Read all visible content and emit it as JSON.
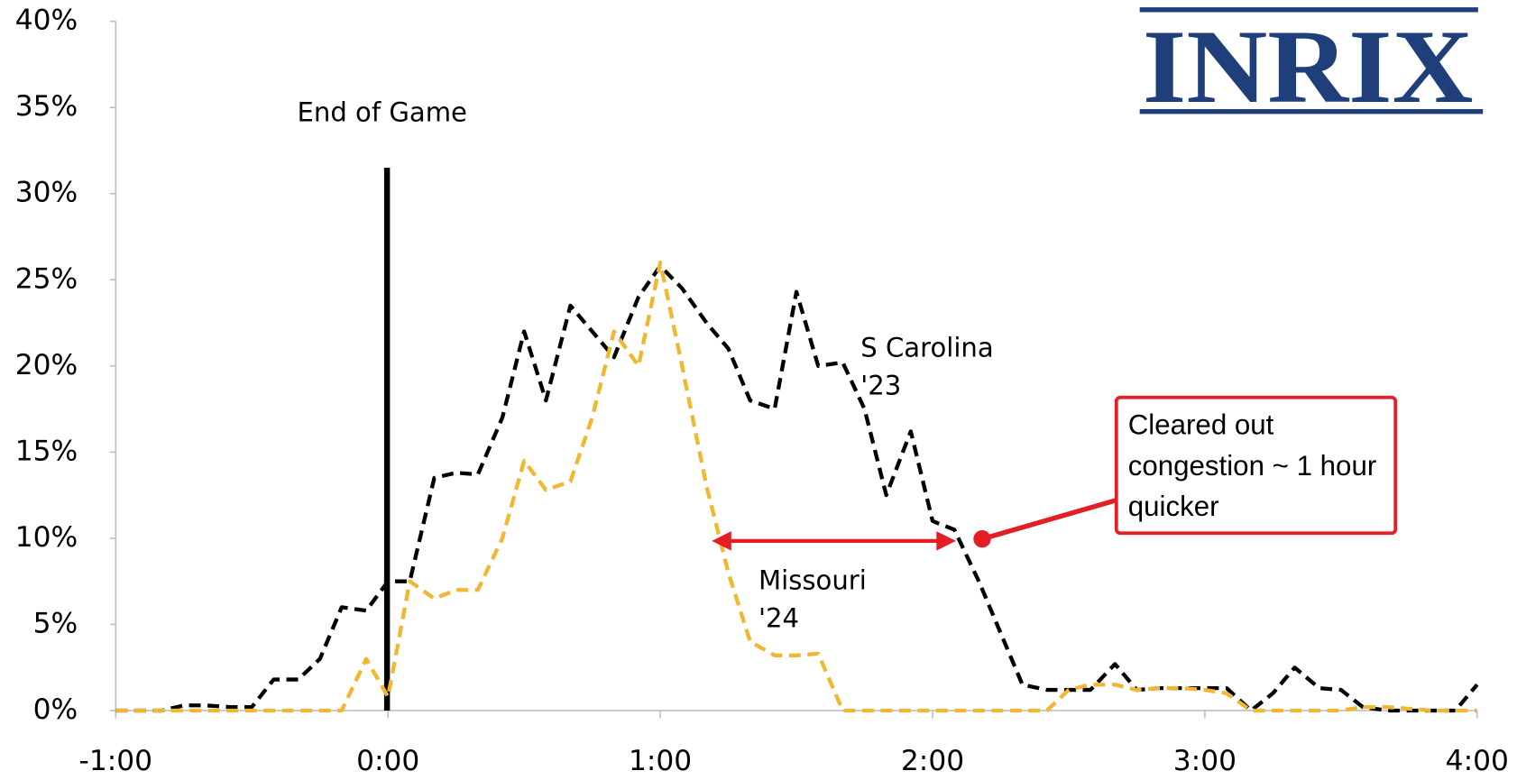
{
  "chart_data": {
    "type": "line",
    "logo": "INRIX",
    "annotations": [
      "End of Game",
      "Cleared out congestion ~ 1 hour quicker"
    ],
    "xlim": [
      -1,
      4
    ],
    "xticks": [
      {
        "value": -1,
        "label": "-1:00"
      },
      {
        "value": 0,
        "label": "0:00"
      },
      {
        "value": 1,
        "label": "1:00"
      },
      {
        "value": 2,
        "label": "2:00"
      },
      {
        "value": 3,
        "label": "3:00"
      },
      {
        "value": 4,
        "label": "4:00"
      }
    ],
    "ylim": [
      0,
      40
    ],
    "yticks": [
      {
        "value": 0,
        "label": "0%"
      },
      {
        "value": 5,
        "label": "5%"
      },
      {
        "value": 10,
        "label": "10%"
      },
      {
        "value": 15,
        "label": "15%"
      },
      {
        "value": 20,
        "label": "20%"
      },
      {
        "value": 25,
        "label": "25%"
      },
      {
        "value": 30,
        "label": "30%"
      },
      {
        "value": 35,
        "label": "35%"
      },
      {
        "value": 40,
        "label": "40%"
      }
    ],
    "x": [
      -1,
      -0.92,
      -0.83,
      -0.75,
      -0.67,
      -0.58,
      -0.5,
      -0.42,
      -0.33,
      -0.25,
      -0.17,
      -0.08,
      0,
      0.08,
      0.17,
      0.25,
      0.33,
      0.42,
      0.5,
      0.58,
      0.67,
      0.75,
      0.83,
      0.92,
      1,
      1.08,
      1.17,
      1.25,
      1.33,
      1.42,
      1.5,
      1.58,
      1.67,
      1.75,
      1.83,
      1.92,
      2,
      2.08,
      2.17,
      2.25,
      2.33,
      2.42,
      2.5,
      2.58,
      2.67,
      2.75,
      2.83,
      2.92,
      3,
      3.08,
      3.17,
      3.25,
      3.33,
      3.42,
      3.5,
      3.58,
      3.67,
      3.75,
      3.83,
      3.92,
      4
    ],
    "series": [
      {
        "name": "S Carolina '23",
        "color": "#000000",
        "values": [
          0,
          0,
          0,
          0.3,
          0.3,
          0.2,
          0.2,
          1.8,
          1.8,
          3,
          6,
          5.8,
          7.5,
          7.5,
          13.5,
          13.8,
          13.7,
          17,
          22,
          18,
          23.5,
          22,
          20.5,
          24,
          25.8,
          24.5,
          22.5,
          21,
          18,
          17.5,
          24.3,
          20,
          20.2,
          17.5,
          12.5,
          16.2,
          11,
          10.5,
          7.5,
          4.5,
          1.5,
          1.2,
          1.2,
          1.2,
          2.7,
          1.2,
          1.3,
          1.3,
          1.3,
          1.3,
          0,
          1,
          2.5,
          1.3,
          1.2,
          0.2,
          0,
          0,
          0,
          0,
          1.5
        ]
      },
      {
        "name": "Missouri '24",
        "color": "#f0b732",
        "values": [
          0,
          0,
          0,
          0,
          0,
          0,
          0,
          0,
          0,
          0,
          0,
          3,
          0.8,
          7.5,
          6.5,
          7,
          7,
          10,
          14.5,
          12.8,
          13.3,
          17,
          22,
          20,
          26,
          20,
          13,
          8,
          4,
          3.2,
          3.2,
          3.3,
          0,
          0,
          0,
          0,
          0,
          0,
          0,
          0,
          0,
          0,
          1.2,
          1.5,
          1.5,
          1.2,
          1.3,
          1.3,
          1.2,
          1,
          0,
          0,
          0,
          0,
          0,
          0.2,
          0.2,
          0.1,
          0,
          0,
          0
        ]
      }
    ]
  }
}
